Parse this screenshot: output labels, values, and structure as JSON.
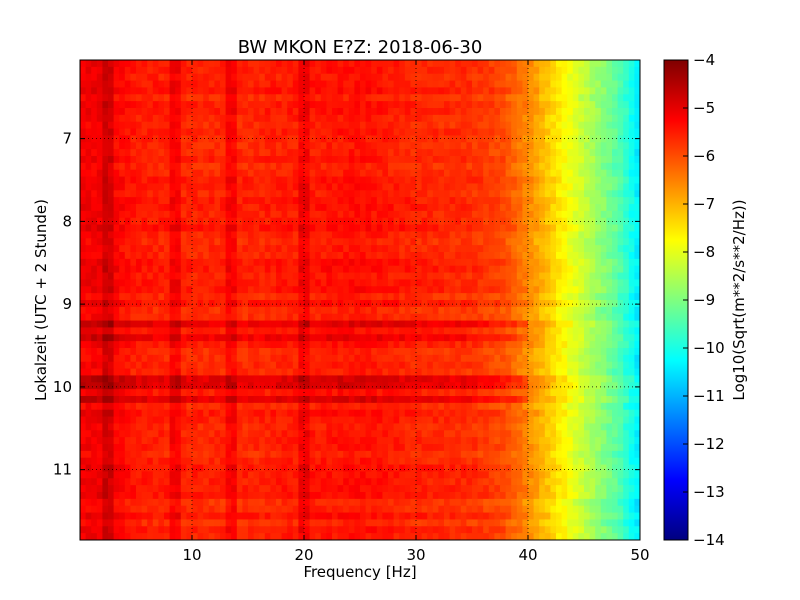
{
  "chart_data": {
    "type": "heatmap",
    "title": "BW MKON E?Z: 2018-06-30",
    "xlabel": "Frequency [Hz]",
    "ylabel": "Lokalzeit (UTC + 2 Stunde)",
    "xlim": [
      0,
      50
    ],
    "ylim": [
      11.85,
      6.05
    ],
    "y_inverted": true,
    "x_ticks": [
      10,
      20,
      30,
      40,
      50
    ],
    "y_ticks": [
      7,
      8,
      9,
      10,
      11
    ],
    "grid": true,
    "colorbar": {
      "label": "Log10(Sqrt(m**2/s**2/Hz))",
      "min": -14,
      "max": -4,
      "ticks": [
        -4,
        -5,
        -6,
        -7,
        -8,
        -9,
        -10,
        -11,
        -12,
        -13,
        -14
      ],
      "colormap": "jet"
    },
    "profile": {
      "frequency_hz": [
        0,
        2,
        5,
        10,
        15,
        20,
        25,
        30,
        35,
        38,
        40,
        42,
        44,
        46,
        48,
        50
      ],
      "log_amplitude": [
        -5.2,
        -5.1,
        -5.5,
        -5.6,
        -5.6,
        -5.5,
        -5.4,
        -5.6,
        -5.7,
        -6.0,
        -6.6,
        -7.3,
        -8.0,
        -8.7,
        -9.4,
        -10.5
      ]
    },
    "lines": {
      "frequency_hz": [
        2.5,
        8.5,
        13.5,
        20
      ],
      "time": [
        9.25,
        9.4,
        9.93,
        10.15
      ]
    }
  }
}
